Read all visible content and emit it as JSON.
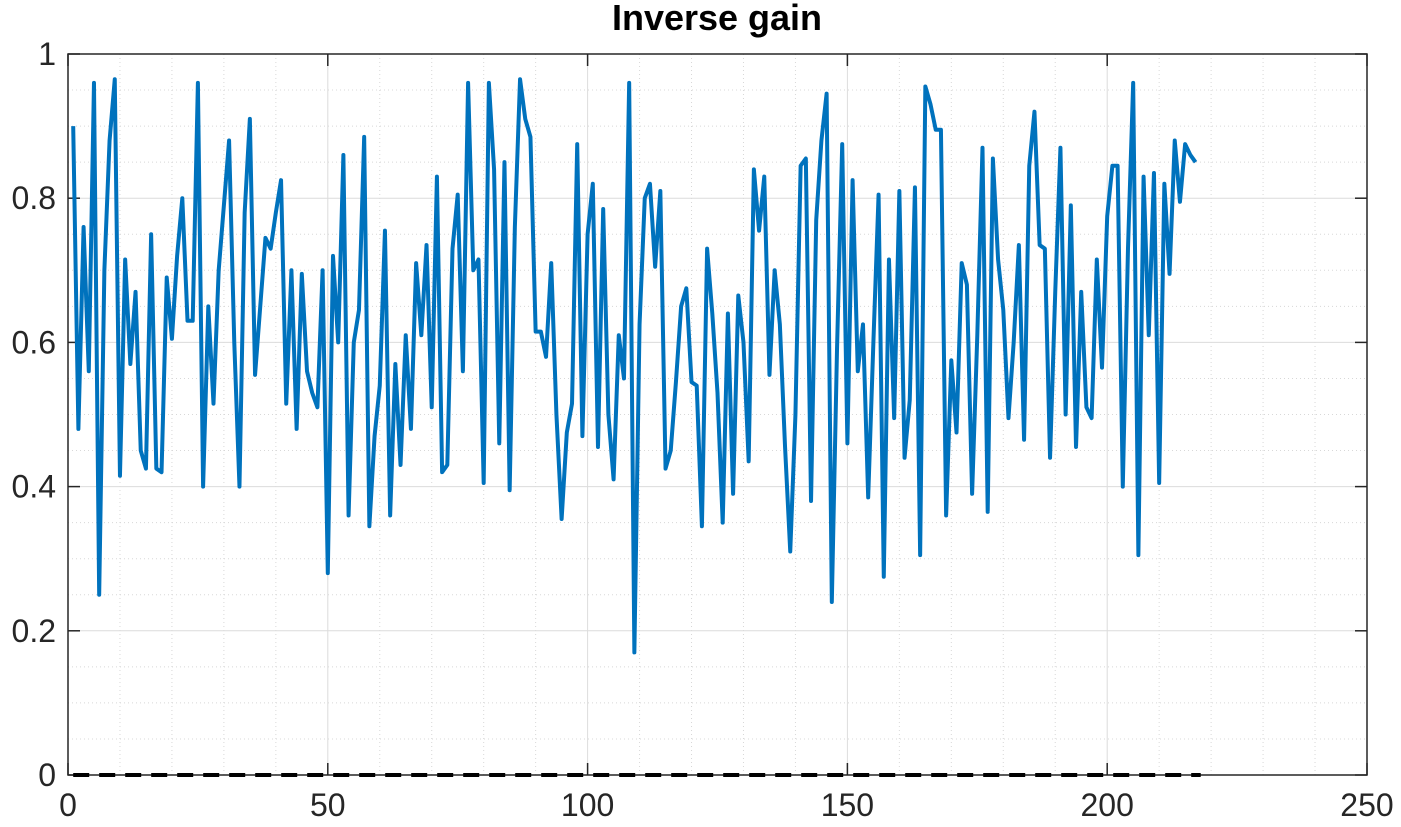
{
  "chart_data": {
    "type": "line",
    "title": "Inverse gain",
    "series": [
      {
        "color": "#0072BD",
        "dash": false,
        "x": [
          1,
          2,
          3,
          4,
          5,
          6,
          7,
          8,
          9,
          10,
          11,
          12,
          13,
          14,
          15,
          16,
          17,
          18,
          19,
          20,
          21,
          22,
          23,
          24,
          25,
          26,
          27,
          28,
          29,
          30,
          31,
          32,
          33,
          34,
          35,
          36,
          37,
          38,
          39,
          40,
          41,
          42,
          43,
          44,
          45,
          46,
          47,
          48,
          49,
          50,
          51,
          52,
          53,
          54,
          55,
          56,
          57,
          58,
          59,
          60,
          61,
          62,
          63,
          64,
          65,
          66,
          67,
          68,
          69,
          70,
          71,
          72,
          73,
          74,
          75,
          76,
          77,
          78,
          79,
          80,
          81,
          82,
          83,
          84,
          85,
          86,
          87,
          88,
          89,
          90,
          91,
          92,
          93,
          94,
          95,
          96,
          97,
          98,
          99,
          100,
          101,
          102,
          103,
          104,
          105,
          106,
          107,
          108,
          109,
          110,
          111,
          112,
          113,
          114,
          115,
          116,
          117,
          118,
          119,
          120,
          121,
          122,
          123,
          124,
          125,
          126,
          127,
          128,
          129,
          130,
          131,
          132,
          133,
          134,
          135,
          136,
          137,
          138,
          139,
          140,
          141,
          142,
          143,
          144,
          145,
          146,
          147,
          148,
          149,
          150,
          151,
          152,
          153,
          154,
          155,
          156,
          157,
          158,
          159,
          160,
          161,
          162,
          163,
          164,
          165,
          166,
          167,
          168,
          169,
          170,
          171,
          172,
          173,
          174,
          175,
          176,
          177,
          178,
          179,
          180,
          181,
          182,
          183,
          184,
          185,
          186,
          187,
          188,
          189,
          190,
          191,
          192,
          193,
          194,
          195,
          196,
          197,
          198,
          199,
          200,
          201,
          202,
          203,
          204,
          205,
          206,
          207,
          208,
          209,
          210,
          211,
          212,
          213,
          214,
          215,
          216,
          217
        ],
        "values": [
          0.9,
          0.48,
          0.76,
          0.56,
          0.96,
          0.25,
          0.7,
          0.88,
          0.965,
          0.415,
          0.715,
          0.57,
          0.67,
          0.45,
          0.425,
          0.75,
          0.425,
          0.42,
          0.69,
          0.605,
          0.72,
          0.8,
          0.63,
          0.63,
          0.96,
          0.4,
          0.65,
          0.515,
          0.7,
          0.79,
          0.88,
          0.6,
          0.4,
          0.78,
          0.91,
          0.555,
          0.65,
          0.745,
          0.73,
          0.78,
          0.825,
          0.515,
          0.7,
          0.48,
          0.695,
          0.56,
          0.53,
          0.51,
          0.7,
          0.28,
          0.72,
          0.6,
          0.86,
          0.36,
          0.6,
          0.645,
          0.885,
          0.345,
          0.47,
          0.54,
          0.755,
          0.36,
          0.57,
          0.43,
          0.61,
          0.48,
          0.71,
          0.61,
          0.735,
          0.51,
          0.83,
          0.42,
          0.43,
          0.73,
          0.805,
          0.56,
          0.96,
          0.7,
          0.715,
          0.405,
          0.96,
          0.84,
          0.46,
          0.85,
          0.395,
          0.76,
          0.965,
          0.91,
          0.885,
          0.615,
          0.615,
          0.58,
          0.71,
          0.5,
          0.355,
          0.475,
          0.515,
          0.875,
          0.47,
          0.75,
          0.82,
          0.455,
          0.785,
          0.5,
          0.41,
          0.61,
          0.55,
          0.96,
          0.17,
          0.625,
          0.8,
          0.82,
          0.705,
          0.81,
          0.425,
          0.45,
          0.545,
          0.65,
          0.675,
          0.545,
          0.54,
          0.345,
          0.73,
          0.64,
          0.53,
          0.35,
          0.64,
          0.39,
          0.665,
          0.6,
          0.435,
          0.84,
          0.755,
          0.83,
          0.555,
          0.7,
          0.625,
          0.455,
          0.31,
          0.5,
          0.845,
          0.855,
          0.38,
          0.77,
          0.88,
          0.945,
          0.24,
          0.59,
          0.875,
          0.46,
          0.825,
          0.56,
          0.625,
          0.385,
          0.6,
          0.805,
          0.275,
          0.715,
          0.495,
          0.81,
          0.44,
          0.52,
          0.815,
          0.305,
          0.955,
          0.93,
          0.895,
          0.895,
          0.36,
          0.575,
          0.475,
          0.71,
          0.68,
          0.39,
          0.61,
          0.87,
          0.365,
          0.855,
          0.715,
          0.645,
          0.495,
          0.6,
          0.735,
          0.465,
          0.845,
          0.92,
          0.735,
          0.73,
          0.44,
          0.67,
          0.87,
          0.5,
          0.79,
          0.455,
          0.67,
          0.51,
          0.495,
          0.715,
          0.565,
          0.775,
          0.845,
          0.845,
          0.4,
          0.73,
          0.96,
          0.305,
          0.83,
          0.61,
          0.835,
          0.405,
          0.82,
          0.695,
          0.88,
          0.795,
          0.875,
          0.86,
          0.85
        ]
      },
      {
        "color": "#000000",
        "dash": true,
        "x": [
          1,
          218
        ],
        "values": [
          0,
          0
        ]
      }
    ],
    "xlim": [
      0,
      250
    ],
    "xticks": [
      0,
      50,
      100,
      150,
      200,
      250
    ],
    "ylim": [
      0,
      1
    ],
    "yticks": [
      0,
      0.2,
      0.4,
      0.6,
      0.8,
      1
    ],
    "grid": true,
    "minor_grid": true
  }
}
